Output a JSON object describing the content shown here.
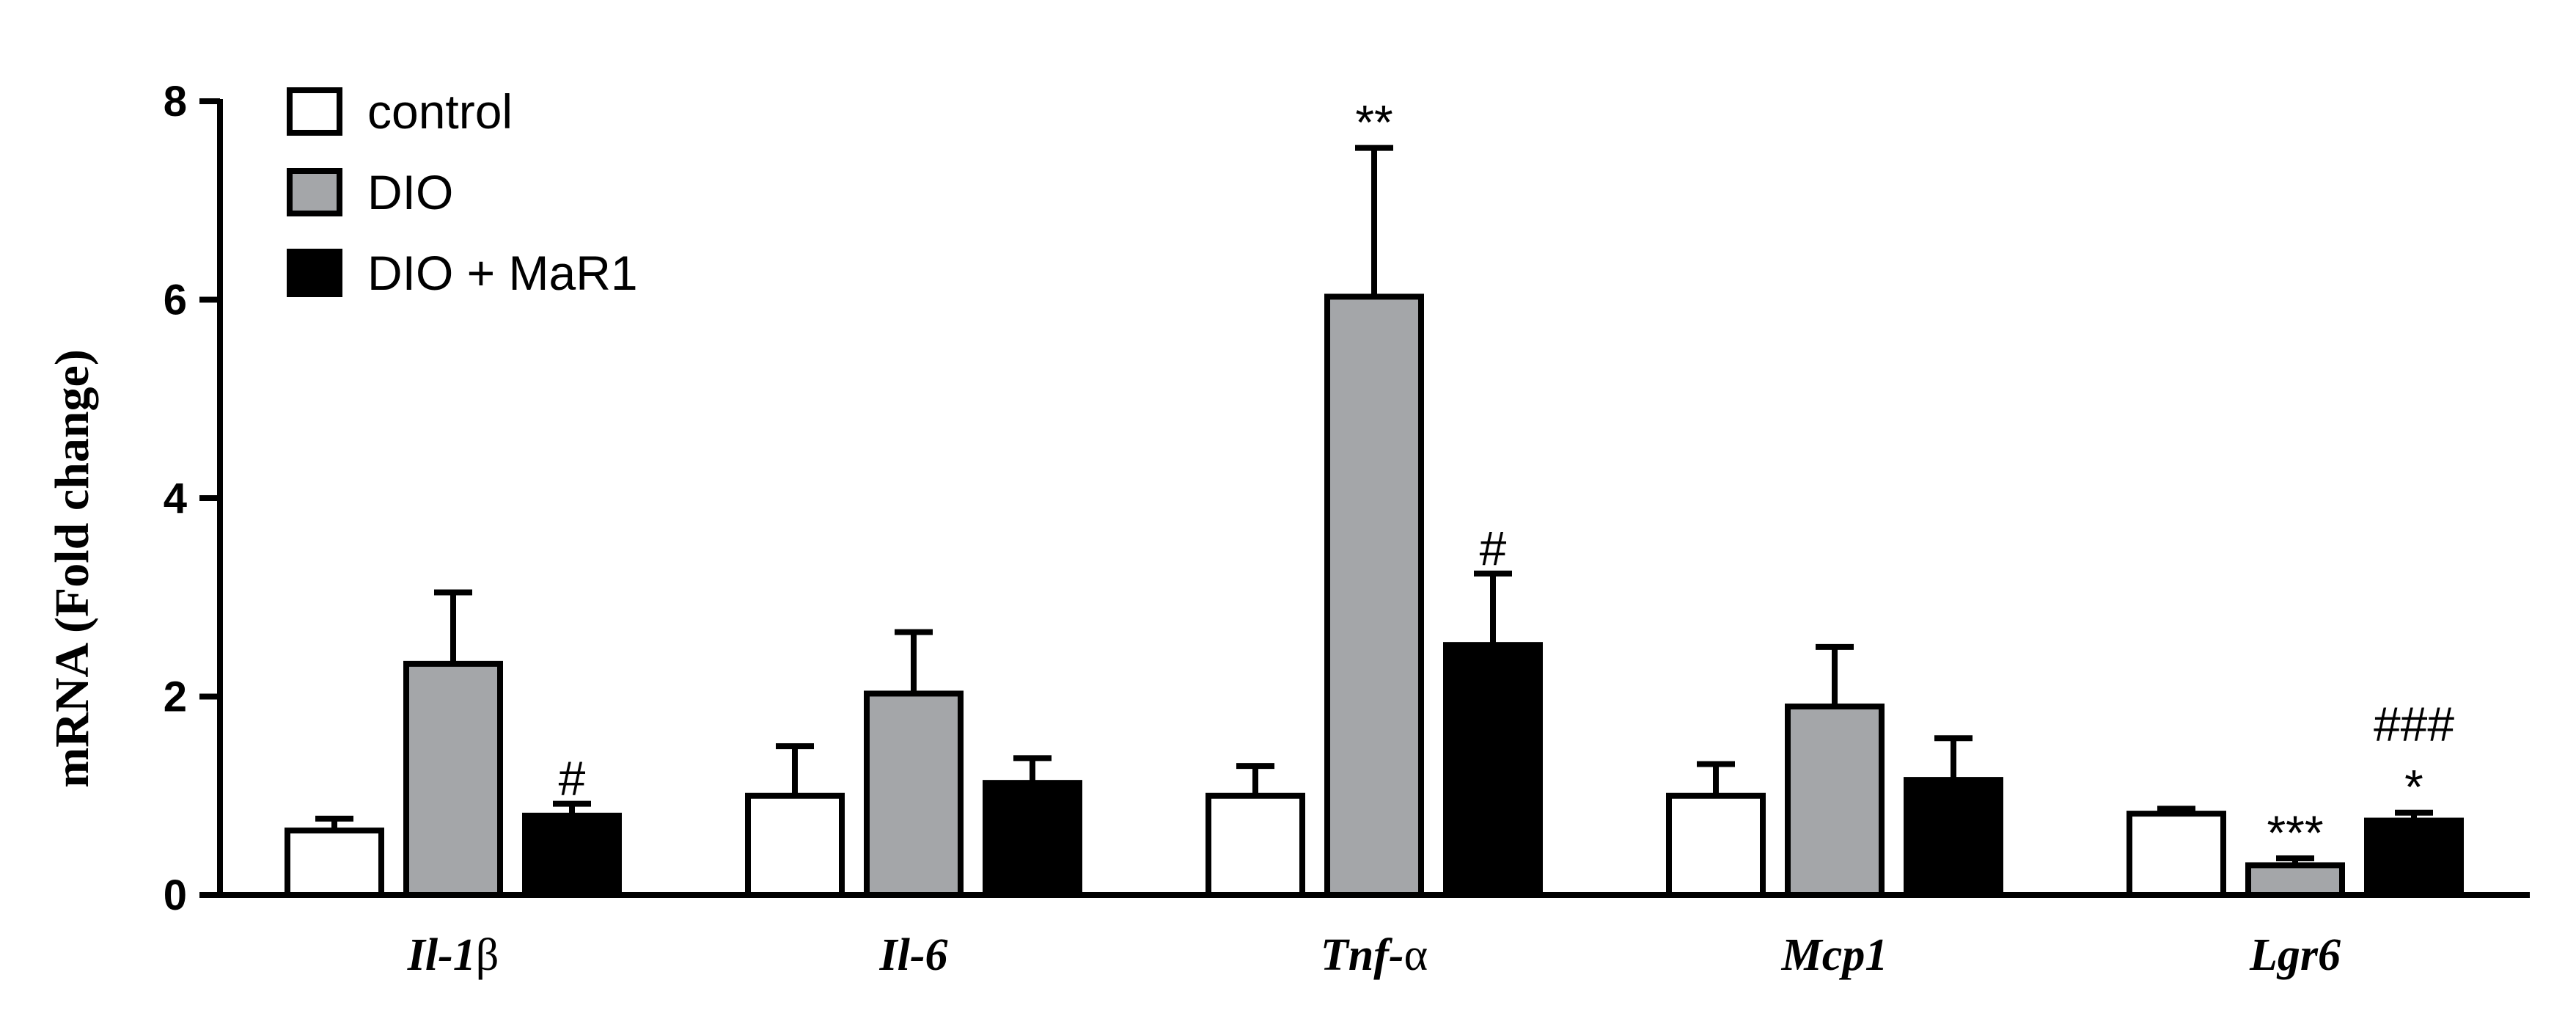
{
  "chart_data": {
    "type": "bar",
    "ylabel": "mRNA (Fold change)",
    "ylim": [
      0,
      8
    ],
    "yticks": [
      "0",
      "2",
      "4",
      "6",
      "8"
    ],
    "categories": [
      {
        "name": "Il-1",
        "suffix": "β"
      },
      {
        "name": "Il-6",
        "suffix": ""
      },
      {
        "name": "Tnf-",
        "suffix": "α"
      },
      {
        "name": "Mcp1",
        "suffix": ""
      },
      {
        "name": "Lgr6",
        "suffix": ""
      }
    ],
    "legend_position": "top-left",
    "series": [
      {
        "name": "control",
        "color": "#ffffff",
        "values": [
          0.65,
          1.0,
          1.0,
          1.0,
          0.82
        ],
        "errors": [
          0.12,
          0.5,
          0.3,
          0.32,
          0.05
        ]
      },
      {
        "name": "DIO",
        "color": "#a4a6a9",
        "values": [
          2.33,
          2.03,
          6.03,
          1.9,
          0.3
        ],
        "errors": [
          0.72,
          0.62,
          1.5,
          0.6,
          0.07
        ]
      },
      {
        "name": "DIO + MaR1",
        "color": "#000000",
        "values": [
          0.8,
          1.13,
          2.52,
          1.16,
          0.75
        ],
        "errors": [
          0.12,
          0.25,
          0.72,
          0.42,
          0.08
        ]
      }
    ],
    "annotations": [
      {
        "category": 0,
        "series": 2,
        "lines": [
          "#"
        ]
      },
      {
        "category": 2,
        "series": 1,
        "lines": [
          "**"
        ]
      },
      {
        "category": 2,
        "series": 2,
        "lines": [
          "#"
        ]
      },
      {
        "category": 4,
        "series": 1,
        "lines": [
          "***"
        ]
      },
      {
        "category": 4,
        "series": 2,
        "lines": [
          "###",
          "*"
        ]
      }
    ]
  }
}
